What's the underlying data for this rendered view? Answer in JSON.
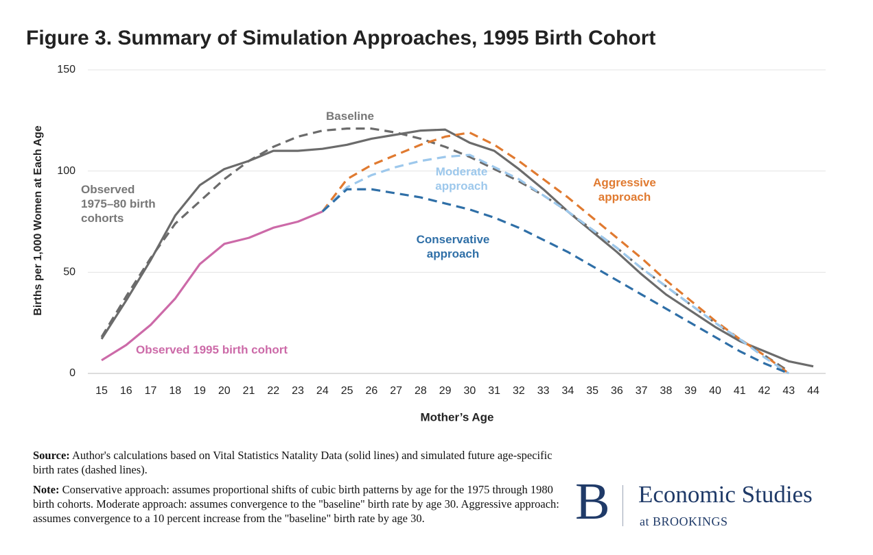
{
  "chart_data": {
    "type": "line",
    "title": "Figure 3. Summary of Simulation Approaches, 1995 Birth Cohort",
    "x_label": "Mother’s Age",
    "y_label": "Births per 1,000 Women at Each Age",
    "x": [
      15,
      16,
      17,
      18,
      19,
      20,
      21,
      22,
      23,
      24,
      25,
      26,
      27,
      28,
      29,
      30,
      31,
      32,
      33,
      34,
      35,
      36,
      37,
      38,
      39,
      40,
      41,
      42,
      43,
      44
    ],
    "xlim": [
      15,
      44
    ],
    "xticks": [
      15,
      16,
      17,
      18,
      19,
      20,
      21,
      22,
      23,
      24,
      25,
      26,
      27,
      28,
      29,
      30,
      31,
      32,
      33,
      34,
      35,
      36,
      37,
      38,
      39,
      40,
      41,
      42,
      43,
      44
    ],
    "ylim": [
      0,
      150
    ],
    "yticks": [
      0,
      50,
      100,
      150
    ],
    "grid": true,
    "series": [
      {
        "name": "Observed 1975–80 birth cohorts",
        "color": "#6b6b6b",
        "dashed": false,
        "values": [
          17,
          36,
          56,
          78,
          93,
          101,
          105,
          110,
          110,
          111,
          113,
          116,
          118,
          120,
          120.5,
          114,
          110,
          101,
          91,
          80,
          70,
          60,
          49,
          39,
          31,
          23,
          16,
          11,
          6,
          3.5
        ]
      },
      {
        "name": "Baseline",
        "color": "#6b6b6b",
        "dashed": true,
        "values": [
          18,
          38,
          57,
          74,
          85,
          96,
          105,
          112,
          117,
          120,
          121,
          121,
          119,
          116,
          112,
          107,
          101,
          95,
          88,
          80,
          71,
          62,
          52,
          43,
          34,
          25,
          17,
          9,
          1,
          null
        ]
      },
      {
        "name": "Observed 1995 birth cohort",
        "color": "#cc6aa8",
        "dashed": false,
        "values": [
          6.5,
          14,
          24,
          37,
          54,
          64,
          67,
          72,
          75,
          80,
          null,
          null,
          null,
          null,
          null,
          null,
          null,
          null,
          null,
          null,
          null,
          null,
          null,
          null,
          null,
          null,
          null,
          null,
          null,
          null
        ]
      },
      {
        "name": "Aggressive approach",
        "color": "#e07a30",
        "dashed": true,
        "values": [
          null,
          null,
          null,
          null,
          null,
          null,
          null,
          null,
          null,
          80,
          96,
          103,
          108,
          113,
          117,
          119,
          113,
          105,
          96,
          87,
          77,
          67,
          57,
          46,
          36,
          26,
          17,
          9,
          0,
          null
        ]
      },
      {
        "name": "Moderate approach",
        "color": "#9dc8ec",
        "dashed": true,
        "values": [
          null,
          null,
          null,
          null,
          null,
          null,
          null,
          null,
          null,
          80,
          92,
          98,
          102,
          105,
          107,
          108,
          102,
          96,
          88,
          80,
          71,
          62,
          52,
          43,
          34,
          25,
          17,
          8,
          0,
          null
        ]
      },
      {
        "name": "Conservative approach",
        "color": "#2f6fa7",
        "dashed": true,
        "values": [
          null,
          null,
          null,
          null,
          null,
          null,
          null,
          null,
          null,
          80,
          91,
          91,
          89,
          87,
          84,
          81,
          77,
          72,
          66,
          60,
          53,
          46,
          39,
          32,
          25,
          18,
          11,
          5,
          0,
          null
        ]
      }
    ]
  },
  "footer": {
    "source_label": "Source:",
    "source": "Author's calculations based on Vital Statistics Natality Data (solid lines) and simulated future age-specific birth rates (dashed lines).",
    "note_label": "Note:",
    "note": "Conservative approach: assumes proportional shifts of cubic birth patterns by age for the 1975 through 1980 birth cohorts. Moderate approach: assumes convergence to the \"baseline\" birth rate by age 30. Aggressive approach: assumes convergence to a 10 percent increase from the \"baseline\" birth rate by age 30.",
    "logo_letter": "B",
    "logo_title": "Economic Studies",
    "logo_subtitle": "at BROOKINGS"
  }
}
